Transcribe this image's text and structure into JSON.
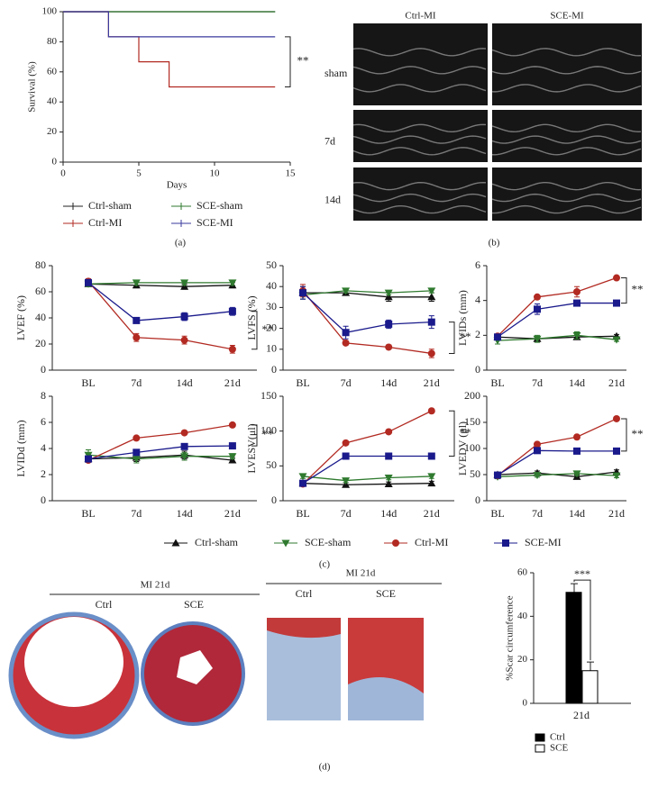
{
  "panel_labels": [
    "(a)",
    "(b)",
    "(c)",
    "(d)"
  ],
  "chart_data": [
    {
      "type": "step",
      "xlabel": "Days",
      "ylabel": "Survival (%)",
      "x": [
        0,
        3,
        5,
        7,
        14
      ],
      "xlim": [
        0,
        15
      ],
      "xticks": [
        0,
        5,
        10,
        15
      ],
      "ylim": [
        0,
        100
      ],
      "yticks": [
        0,
        20,
        40,
        60,
        80,
        100
      ],
      "annotation": "**",
      "series": [
        {
          "name": "Ctrl-sham",
          "color": "#222222",
          "values": [
            100,
            100,
            100,
            100,
            100
          ]
        },
        {
          "name": "SCE-sham",
          "color": "#2f7a2f",
          "values": [
            100,
            100,
            100,
            100,
            100
          ]
        },
        {
          "name": "Ctrl-MI",
          "color": "#b22a22",
          "values": [
            100,
            83.3,
            66.7,
            50,
            50
          ]
        },
        {
          "name": "SCE-MI",
          "color": "#3a3a9e",
          "values": [
            100,
            83.3,
            83.3,
            83.3,
            83.3
          ]
        }
      ]
    },
    {
      "type": "line",
      "ylabel": "LVEF (%)",
      "categories": [
        "BL",
        "7d",
        "14d",
        "21d"
      ],
      "ylim": [
        0,
        80
      ],
      "yticks": [
        0,
        20,
        40,
        60,
        80
      ],
      "annotation": "**",
      "series": [
        {
          "values": [
            66,
            65,
            64,
            65
          ],
          "errors": [
            2,
            2,
            2,
            2
          ]
        },
        {
          "values": [
            66,
            67,
            67,
            67
          ],
          "errors": [
            2,
            2,
            2,
            2
          ]
        },
        {
          "values": [
            68,
            25,
            23,
            16
          ],
          "errors": [
            2,
            3,
            3,
            3
          ]
        },
        {
          "values": [
            67,
            38,
            41,
            45
          ],
          "errors": [
            2,
            2,
            3,
            3
          ]
        }
      ]
    },
    {
      "type": "line",
      "ylabel": "LVFS (%)",
      "categories": [
        "BL",
        "7d",
        "14d",
        "21d"
      ],
      "ylim": [
        0,
        50
      ],
      "yticks": [
        0,
        10,
        20,
        30,
        40,
        50
      ],
      "annotation": "**",
      "series": [
        {
          "values": [
            37,
            37,
            35,
            35
          ],
          "errors": [
            3,
            1,
            2,
            2
          ]
        },
        {
          "values": [
            36,
            38,
            37,
            38
          ],
          "errors": [
            2,
            1,
            1,
            1
          ]
        },
        {
          "values": [
            38,
            13,
            11,
            8
          ],
          "errors": [
            3,
            1,
            1,
            2
          ]
        },
        {
          "values": [
            37,
            18,
            22,
            23
          ],
          "errors": [
            3,
            3,
            2,
            3
          ]
        }
      ]
    },
    {
      "type": "line",
      "ylabel": "LVIDs (mm)",
      "categories": [
        "BL",
        "7d",
        "14d",
        "21d"
      ],
      "ylim": [
        0,
        6
      ],
      "yticks": [
        0,
        2,
        4,
        6
      ],
      "annotation": "**",
      "series": [
        {
          "values": [
            1.9,
            1.8,
            1.9,
            1.95
          ],
          "errors": [
            0.1,
            0.1,
            0.1,
            0.1
          ]
        },
        {
          "values": [
            1.7,
            1.8,
            2.0,
            1.75
          ],
          "errors": [
            0.2,
            0.2,
            0.2,
            0.1
          ]
        },
        {
          "values": [
            1.95,
            4.2,
            4.5,
            5.3
          ],
          "errors": [
            0.1,
            0.1,
            0.3,
            0.1
          ]
        },
        {
          "values": [
            1.9,
            3.5,
            3.85,
            3.85
          ],
          "errors": [
            0.1,
            0.3,
            0.1,
            0.1
          ]
        }
      ]
    },
    {
      "type": "line",
      "ylabel": "LVIDd (mm)",
      "categories": [
        "BL",
        "7d",
        "14d",
        "21d"
      ],
      "ylim": [
        0,
        8
      ],
      "yticks": [
        0,
        2,
        4,
        6,
        8
      ],
      "annotation": "**",
      "series": [
        {
          "values": [
            3.2,
            3.3,
            3.5,
            3.1
          ],
          "errors": [
            0.2,
            0.3,
            0.3,
            0.2
          ]
        },
        {
          "values": [
            3.5,
            3.2,
            3.4,
            3.4
          ],
          "errors": [
            0.4,
            0.3,
            0.3,
            0.2
          ]
        },
        {
          "values": [
            3.1,
            4.8,
            5.2,
            5.8
          ],
          "errors": [
            0.1,
            0.1,
            0.1,
            0.1
          ]
        },
        {
          "values": [
            3.2,
            3.7,
            4.15,
            4.2
          ],
          "errors": [
            0.2,
            0.2,
            0.1,
            0.1
          ]
        }
      ]
    },
    {
      "type": "line",
      "ylabel": "LVESV(μl)",
      "categories": [
        "BL",
        "7d",
        "14d",
        "21d"
      ],
      "ylim": [
        0,
        150
      ],
      "yticks": [
        0,
        50,
        100,
        150
      ],
      "annotation": "**",
      "series": [
        {
          "values": [
            25,
            23,
            24,
            25
          ],
          "errors": [
            3,
            3,
            3,
            3
          ]
        },
        {
          "values": [
            35,
            29,
            33,
            35
          ],
          "errors": [
            3,
            3,
            3,
            3
          ]
        },
        {
          "values": [
            24,
            83,
            99,
            129
          ],
          "errors": [
            2,
            2,
            2,
            2
          ]
        },
        {
          "values": [
            25,
            64,
            64,
            64
          ],
          "errors": [
            2,
            2,
            2,
            2
          ]
        }
      ]
    },
    {
      "type": "line",
      "ylabel": "LVEDV (μl)",
      "categories": [
        "BL",
        "7d",
        "14d",
        "21d"
      ],
      "ylim": [
        0,
        200
      ],
      "yticks": [
        0,
        50,
        100,
        150,
        200
      ],
      "annotation": "**",
      "series": [
        {
          "values": [
            50,
            53,
            46,
            55
          ],
          "errors": [
            4,
            4,
            4,
            4
          ]
        },
        {
          "values": [
            46,
            49,
            52,
            48
          ],
          "errors": [
            4,
            4,
            4,
            4
          ]
        },
        {
          "values": [
            48,
            108,
            122,
            157
          ],
          "errors": [
            3,
            3,
            3,
            3
          ]
        },
        {
          "values": [
            49,
            96,
            95,
            95
          ],
          "errors": [
            3,
            3,
            3,
            3
          ]
        }
      ]
    },
    {
      "type": "bar",
      "ylabel": "%Scar circumference",
      "categories": [
        "21d"
      ],
      "ylim": [
        0,
        60
      ],
      "yticks": [
        0,
        20,
        40,
        60
      ],
      "annotation": "***",
      "series": [
        {
          "name": "Ctrl",
          "color": "#000000",
          "values": [
            51
          ],
          "errors": [
            4
          ]
        },
        {
          "name": "SCE",
          "color": "#ffffff",
          "values": [
            15
          ],
          "errors": [
            4
          ]
        }
      ]
    }
  ],
  "line_legend": [
    {
      "name": "Ctrl-sham",
      "color": "#111111",
      "marker": "triangle-up"
    },
    {
      "name": "SCE-sham",
      "color": "#2f7a2f",
      "marker": "triangle-down"
    },
    {
      "name": "Ctrl-MI",
      "color": "#b22a22",
      "marker": "circle"
    },
    {
      "name": "SCE-MI",
      "color": "#1a1a8c",
      "marker": "square"
    }
  ],
  "echo": {
    "columns": [
      "Ctrl-MI",
      "SCE-MI"
    ],
    "rows": [
      "sham",
      "7d",
      "14d"
    ]
  },
  "histology": {
    "whole": {
      "title": "MI 21d",
      "labels": [
        "Ctrl",
        "SCE"
      ]
    },
    "zoom": {
      "title": "MI 21d",
      "labels": [
        "Ctrl",
        "SCE"
      ]
    }
  }
}
